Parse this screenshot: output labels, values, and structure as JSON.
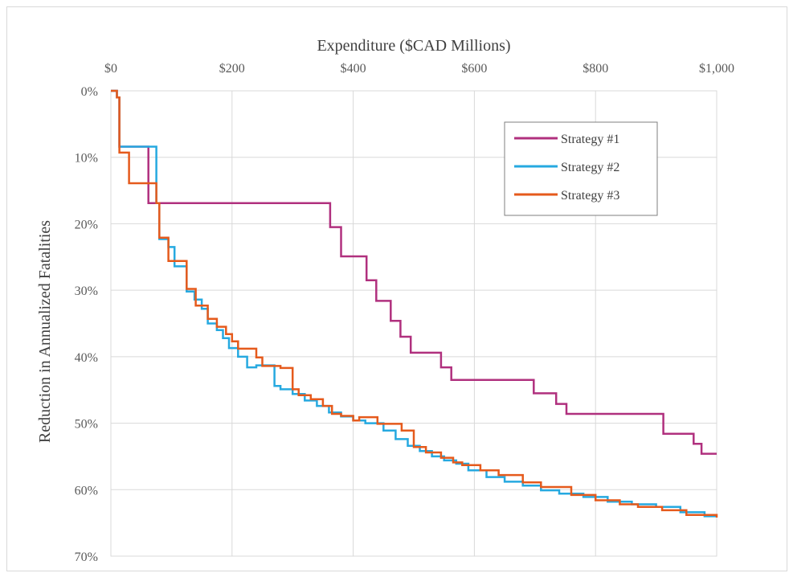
{
  "chart_data": {
    "type": "line",
    "title": "",
    "xlabel": "Expenditure ($CAD Millions)",
    "ylabel": "Reduction in Annualized Fatalities",
    "xlim": [
      0,
      1000
    ],
    "ylim": [
      0,
      70
    ],
    "y_reversed": true,
    "x_axis_position": "top",
    "grid": true,
    "legend_position": "top-right",
    "x_ticks": [
      {
        "value": 0,
        "label": "$0"
      },
      {
        "value": 200,
        "label": "$200"
      },
      {
        "value": 400,
        "label": "$400"
      },
      {
        "value": 600,
        "label": "$600"
      },
      {
        "value": 800,
        "label": "$800"
      },
      {
        "value": 1000,
        "label": "$1,000"
      }
    ],
    "y_ticks": [
      {
        "value": 0,
        "label": "0%"
      },
      {
        "value": 10,
        "label": "10%"
      },
      {
        "value": 20,
        "label": "20%"
      },
      {
        "value": 30,
        "label": "30%"
      },
      {
        "value": 40,
        "label": "40%"
      },
      {
        "value": 50,
        "label": "50%"
      },
      {
        "value": 60,
        "label": "60%"
      },
      {
        "value": 70,
        "label": "70%"
      }
    ],
    "series": [
      {
        "name": "Strategy #1",
        "color": "#b0307e",
        "step": true,
        "x": [
          0,
          10,
          14,
          55,
          62,
          350,
          362,
          380,
          422,
          438,
          462,
          478,
          495,
          545,
          562,
          698,
          735,
          752,
          902,
          912,
          962,
          975,
          1000
        ],
        "y": [
          0,
          1,
          8.4,
          8.4,
          16.9,
          16.9,
          20.5,
          24.9,
          28.5,
          31.6,
          34.6,
          37.0,
          39.4,
          41.6,
          43.5,
          45.5,
          47.1,
          48.6,
          48.6,
          51.6,
          53.1,
          54.6,
          54.6
        ]
      },
      {
        "name": "Strategy #2",
        "color": "#26a9e0",
        "step": true,
        "x": [
          0,
          10,
          14,
          75,
          80,
          95,
          105,
          125,
          138,
          150,
          160,
          175,
          185,
          195,
          210,
          225,
          240,
          270,
          280,
          300,
          320,
          340,
          360,
          380,
          400,
          420,
          450,
          470,
          490,
          510,
          530,
          550,
          570,
          590,
          620,
          650,
          680,
          710,
          740,
          780,
          820,
          860,
          900,
          940,
          980,
          1000
        ],
        "y": [
          0,
          1,
          8.4,
          16.9,
          22.3,
          23.5,
          26.4,
          30.2,
          31.4,
          32.8,
          35.0,
          36.0,
          37.2,
          38.7,
          40.0,
          41.6,
          41.3,
          44.4,
          44.9,
          45.6,
          46.6,
          47.4,
          48.4,
          49.0,
          49.6,
          50.0,
          51.1,
          52.4,
          53.4,
          54.2,
          55.0,
          55.6,
          56.1,
          57.1,
          58.1,
          58.8,
          59.4,
          60.1,
          60.6,
          61.1,
          61.8,
          62.2,
          62.6,
          63.4,
          64.0,
          64.0
        ]
      },
      {
        "name": "Strategy #3",
        "color": "#e55a1c",
        "step": true,
        "x": [
          0,
          10,
          14,
          30,
          75,
          80,
          95,
          125,
          140,
          160,
          175,
          190,
          200,
          210,
          240,
          250,
          280,
          300,
          310,
          330,
          350,
          365,
          380,
          400,
          410,
          440,
          480,
          500,
          520,
          545,
          565,
          580,
          610,
          640,
          680,
          710,
          760,
          800,
          840,
          870,
          910,
          950,
          1000
        ],
        "y": [
          0,
          1,
          9.3,
          13.9,
          16.9,
          22.1,
          25.6,
          29.8,
          32.3,
          34.3,
          35.5,
          36.6,
          37.7,
          38.8,
          40.1,
          41.4,
          41.7,
          44.9,
          45.8,
          46.4,
          47.4,
          48.6,
          48.9,
          49.6,
          49.1,
          50.1,
          51.1,
          53.6,
          54.4,
          55.2,
          55.9,
          56.3,
          57.1,
          57.8,
          58.9,
          59.6,
          60.8,
          61.6,
          62.2,
          62.6,
          63.1,
          63.8,
          64.2
        ]
      }
    ]
  }
}
